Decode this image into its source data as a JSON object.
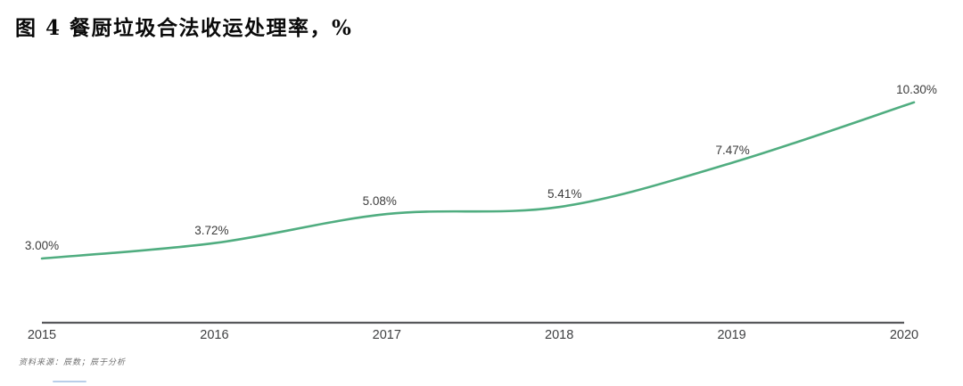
{
  "title": "图 4 餐厨垃圾合法收运处理率，%",
  "source_note": "资料来源：辰数；辰于分析",
  "chart_data": {
    "type": "line",
    "title": "餐厨垃圾合法收运处理率",
    "ylabel": "%",
    "xlabel": "",
    "x": [
      "2015",
      "2016",
      "2017",
      "2018",
      "2019",
      "2020"
    ],
    "values": [
      3.0,
      3.72,
      5.08,
      5.41,
      7.47,
      10.3
    ],
    "labels": [
      "3.00%",
      "3.72%",
      "5.08%",
      "5.41%",
      "7.47%",
      "10.30%"
    ],
    "series": [
      {
        "name": "餐厨垃圾合法收运处理率",
        "values": [
          3.0,
          3.72,
          5.08,
          5.41,
          7.47,
          10.3
        ]
      }
    ],
    "ylim": [
      0,
      11.7
    ],
    "grid": false,
    "legend": false,
    "line_color": "#50ad80",
    "axis_color": "#56575a",
    "label_color": "#3c3c3c",
    "tick_label_color": "#3f4042"
  }
}
